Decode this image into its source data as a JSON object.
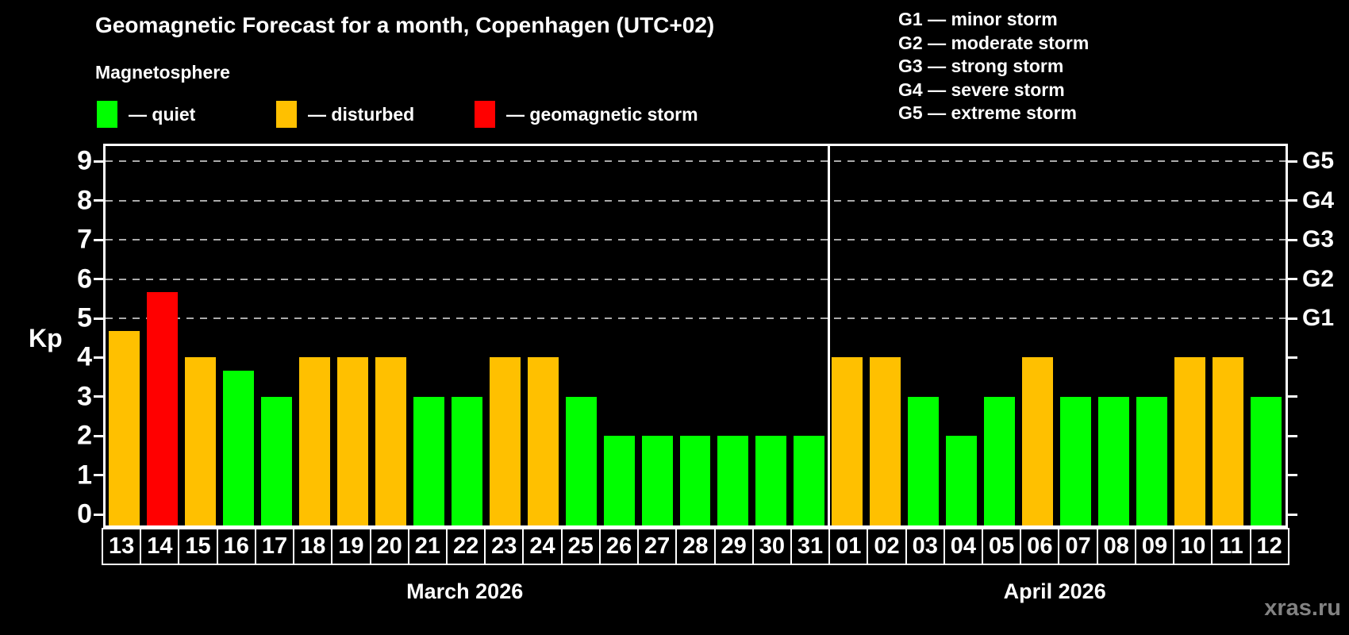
{
  "title": "Geomagnetic Forecast for a month, Copenhagen (UTC+02)",
  "subtitle": "Magnetosphere",
  "legend": {
    "items": [
      {
        "name": "quiet",
        "label": "— quiet",
        "color": "#00ff00"
      },
      {
        "name": "disturbed",
        "label": "— disturbed",
        "color": "#ffc000"
      },
      {
        "name": "geomagnetic-storm",
        "label": "— geomagnetic storm",
        "color": "#ff0000"
      }
    ]
  },
  "g_legend": {
    "items": [
      {
        "code": "G1",
        "text": "G1 — minor storm"
      },
      {
        "code": "G2",
        "text": "G2 — moderate storm"
      },
      {
        "code": "G3",
        "text": "G3 — strong storm"
      },
      {
        "code": "G4",
        "text": "G4 — severe storm"
      },
      {
        "code": "G5",
        "text": "G5 — extreme storm"
      }
    ]
  },
  "chart_data": {
    "type": "bar",
    "ylabel": "Kp",
    "ylim": [
      0,
      9.4
    ],
    "grid": "dashed horizontal at Kp 5-9",
    "y_ticks": [
      0,
      1,
      2,
      3,
      4,
      5,
      6,
      7,
      8,
      9
    ],
    "grid_kp": [
      5,
      6,
      7,
      8,
      9
    ],
    "right_axis_labels": [
      {
        "kp": 5,
        "label": "G1"
      },
      {
        "kp": 6,
        "label": "G2"
      },
      {
        "kp": 7,
        "label": "G3"
      },
      {
        "kp": 8,
        "label": "G4"
      },
      {
        "kp": 9,
        "label": "G5"
      }
    ],
    "status_colors": {
      "quiet": "#00ff00",
      "disturbed": "#ffc000",
      "storm": "#ff0000"
    },
    "months": [
      {
        "label": "March 2026",
        "days": [
          {
            "day": "13",
            "kp": 4.67,
            "status": "disturbed"
          },
          {
            "day": "14",
            "kp": 5.67,
            "status": "storm"
          },
          {
            "day": "15",
            "kp": 4,
            "status": "disturbed"
          },
          {
            "day": "16",
            "kp": 3.67,
            "status": "quiet"
          },
          {
            "day": "17",
            "kp": 3,
            "status": "quiet"
          },
          {
            "day": "18",
            "kp": 4,
            "status": "disturbed"
          },
          {
            "day": "19",
            "kp": 4,
            "status": "disturbed"
          },
          {
            "day": "20",
            "kp": 4,
            "status": "disturbed"
          },
          {
            "day": "21",
            "kp": 3,
            "status": "quiet"
          },
          {
            "day": "22",
            "kp": 3,
            "status": "quiet"
          },
          {
            "day": "23",
            "kp": 4,
            "status": "disturbed"
          },
          {
            "day": "24",
            "kp": 4,
            "status": "disturbed"
          },
          {
            "day": "25",
            "kp": 3,
            "status": "quiet"
          },
          {
            "day": "26",
            "kp": 2,
            "status": "quiet"
          },
          {
            "day": "27",
            "kp": 2,
            "status": "quiet"
          },
          {
            "day": "28",
            "kp": 2,
            "status": "quiet"
          },
          {
            "day": "29",
            "kp": 2,
            "status": "quiet"
          },
          {
            "day": "30",
            "kp": 2,
            "status": "quiet"
          },
          {
            "day": "31",
            "kp": 2,
            "status": "quiet"
          }
        ]
      },
      {
        "label": "April 2026",
        "days": [
          {
            "day": "01",
            "kp": 4,
            "status": "disturbed"
          },
          {
            "day": "02",
            "kp": 4,
            "status": "disturbed"
          },
          {
            "day": "03",
            "kp": 3,
            "status": "quiet"
          },
          {
            "day": "04",
            "kp": 2,
            "status": "quiet"
          },
          {
            "day": "05",
            "kp": 3,
            "status": "quiet"
          },
          {
            "day": "06",
            "kp": 4,
            "status": "disturbed"
          },
          {
            "day": "07",
            "kp": 3,
            "status": "quiet"
          },
          {
            "day": "08",
            "kp": 3,
            "status": "quiet"
          },
          {
            "day": "09",
            "kp": 3,
            "status": "quiet"
          },
          {
            "day": "10",
            "kp": 4,
            "status": "disturbed"
          },
          {
            "day": "11",
            "kp": 4,
            "status": "disturbed"
          },
          {
            "day": "12",
            "kp": 3,
            "status": "quiet"
          }
        ]
      }
    ]
  },
  "watermark": "xras.ru"
}
